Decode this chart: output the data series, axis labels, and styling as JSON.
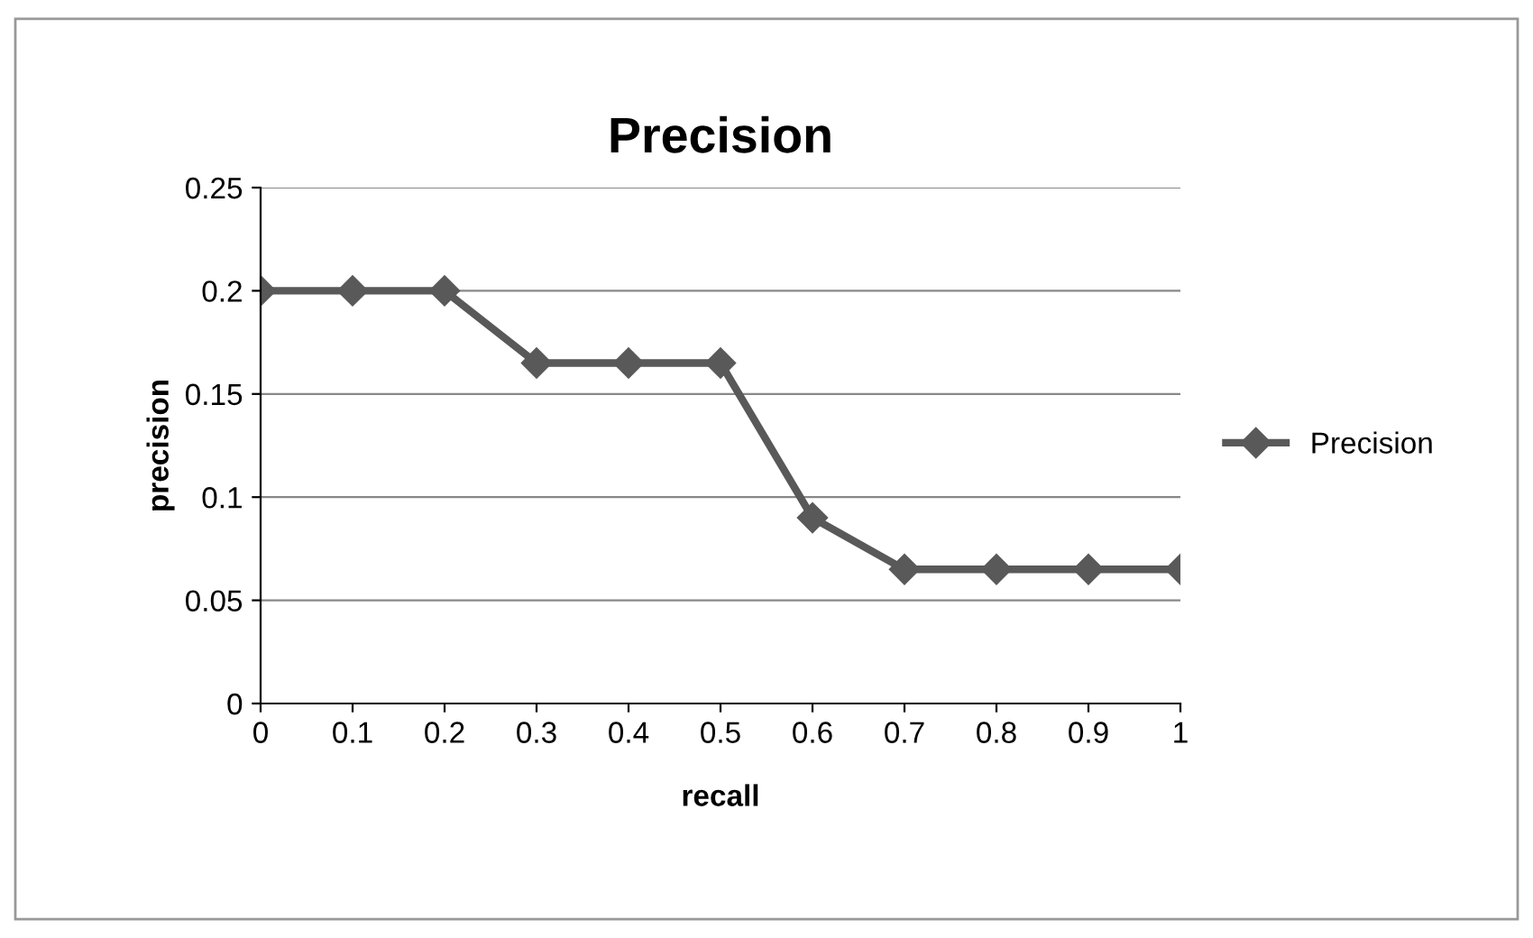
{
  "chart_data": {
    "type": "line",
    "title": "Precision",
    "xlabel": "recall",
    "ylabel": "precision",
    "categories": [
      "0",
      "0.1",
      "0.2",
      "0.3",
      "0.4",
      "0.5",
      "0.6",
      "0.7",
      "0.8",
      "0.9",
      "1"
    ],
    "series": [
      {
        "name": "Precision",
        "color": "#595959",
        "values": [
          0.2,
          0.2,
          0.2,
          0.165,
          0.165,
          0.165,
          0.09,
          0.065,
          0.065,
          0.065,
          0.065
        ]
      }
    ],
    "ylim": [
      0,
      0.25
    ],
    "yticks": [
      0,
      0.05,
      0.1,
      0.15,
      0.2,
      0.25
    ],
    "grid": "y",
    "legend": "right",
    "marker": "diamond",
    "line_style": "solid"
  }
}
